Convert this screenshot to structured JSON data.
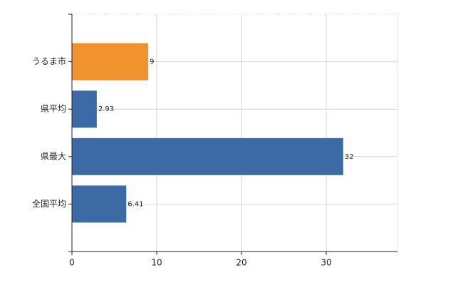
{
  "chart_data": {
    "type": "bar",
    "orientation": "horizontal",
    "categories": [
      "うるま市",
      "県平均",
      "県最大",
      "全国平均"
    ],
    "values": [
      9,
      2.93,
      32,
      6.41
    ],
    "colors": [
      "#f0922e",
      "#3b6aa5",
      "#3b6aa5",
      "#3b6aa5"
    ],
    "xlim": [
      0,
      38.4
    ],
    "xticks": [
      0,
      10,
      20,
      30
    ],
    "grid": true
  }
}
